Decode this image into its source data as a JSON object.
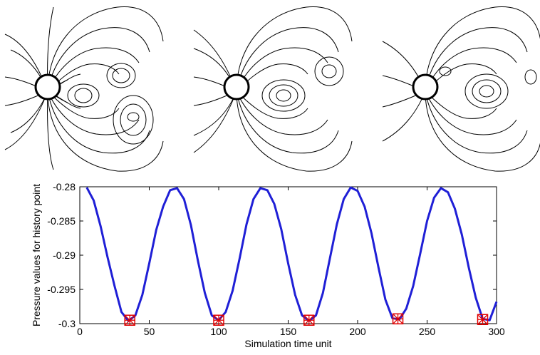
{
  "contour_panels": [
    {
      "label": "contour-panel-1"
    },
    {
      "label": "contour-panel-2"
    },
    {
      "label": "contour-panel-3"
    }
  ],
  "chart_data": {
    "type": "line",
    "xlabel": "Simulation time unit",
    "ylabel": "Pressure values for history point",
    "xlim": [
      0,
      300
    ],
    "ylim": [
      -0.3,
      -0.28
    ],
    "xticks": [
      0,
      50,
      100,
      150,
      200,
      250,
      300
    ],
    "yticks": [
      -0.28,
      -0.285,
      -0.29,
      -0.295,
      -0.3
    ],
    "xtick_labels": [
      "0",
      "50",
      "100",
      "150",
      "200",
      "250",
      "300"
    ],
    "ytick_labels": [
      "-0.28",
      "-0.285",
      "-0.29",
      "-0.295",
      "-0.3"
    ],
    "grid": false,
    "series": [
      {
        "color": "#1f1fd6",
        "x": [
          5,
          10,
          15,
          20,
          25,
          30,
          35,
          40,
          45,
          50,
          55,
          60,
          65,
          70,
          75,
          80,
          85,
          90,
          95,
          100,
          105,
          110,
          115,
          120,
          125,
          130,
          135,
          140,
          145,
          150,
          155,
          160,
          165,
          170,
          175,
          180,
          185,
          190,
          195,
          200,
          205,
          210,
          215,
          220,
          225,
          230,
          235,
          240,
          245,
          250,
          255,
          260,
          265,
          270,
          275,
          280,
          285,
          290,
          295,
          300
        ],
        "y": [
          -0.2801,
          -0.282,
          -0.2858,
          -0.2903,
          -0.2945,
          -0.2983,
          -0.2996,
          -0.2988,
          -0.2958,
          -0.2912,
          -0.2863,
          -0.2829,
          -0.2805,
          -0.2802,
          -0.2818,
          -0.2856,
          -0.2908,
          -0.2955,
          -0.2988,
          -0.2995,
          -0.2983,
          -0.2952,
          -0.2905,
          -0.2855,
          -0.2818,
          -0.2802,
          -0.2805,
          -0.2825,
          -0.2862,
          -0.2912,
          -0.2958,
          -0.2988,
          -0.2996,
          -0.2988,
          -0.2955,
          -0.2905,
          -0.2855,
          -0.2818,
          -0.2801,
          -0.2806,
          -0.2829,
          -0.2868,
          -0.2918,
          -0.2965,
          -0.2992,
          -0.2994,
          -0.2978,
          -0.2945,
          -0.2898,
          -0.285,
          -0.2816,
          -0.2802,
          -0.2808,
          -0.2832,
          -0.287,
          -0.2918,
          -0.2962,
          -0.2993,
          -0.2995,
          -0.2968
        ]
      }
    ],
    "markers": {
      "style": "red square with star",
      "color": "#e00000",
      "x": [
        36,
        100,
        165,
        229,
        290
      ],
      "y": [
        -0.2995,
        -0.2995,
        -0.2995,
        -0.2993,
        -0.2994
      ]
    }
  }
}
